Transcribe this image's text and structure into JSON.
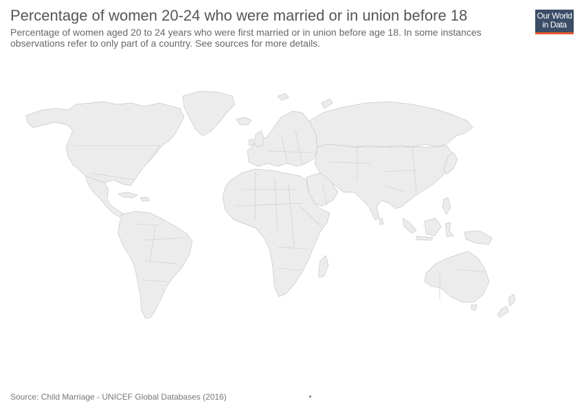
{
  "header": {
    "title": "Percentage of women 20-24 who were married or in union before 18",
    "subtitle": "Percentage of women aged 20 to 24 years who were first married or in union before age 18. In some instances observations refer to only part of a country. See sources for more details."
  },
  "logo": {
    "line1": "Our World",
    "line2": "in Data",
    "bar_color": "#e5582c",
    "bg_color": "#3c4d67"
  },
  "map": {
    "land_color": "#ececec",
    "border_color": "#c8c8c8",
    "data_shown": false
  },
  "footer": {
    "source": "Source: Child Marriage - UNICEF Global Databases (2016)"
  }
}
